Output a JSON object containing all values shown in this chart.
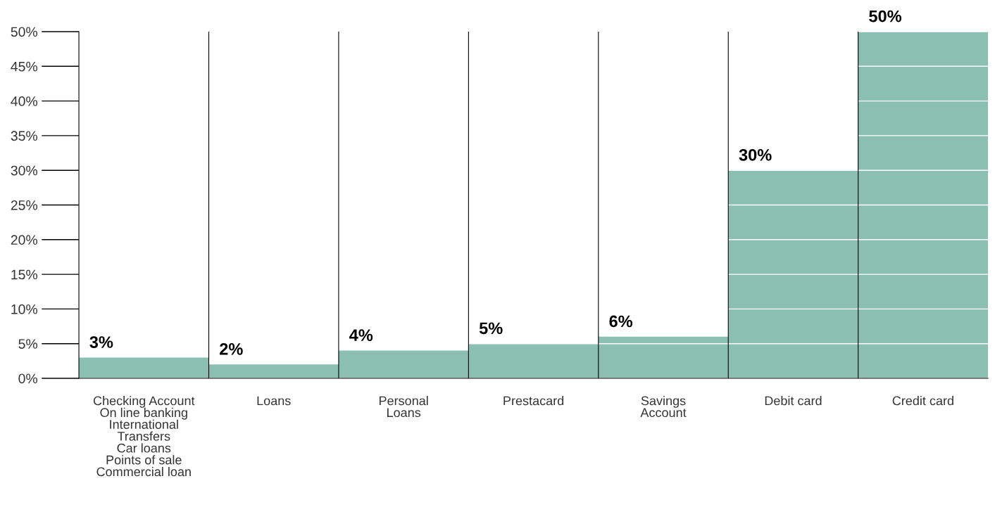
{
  "chart_data": {
    "type": "bar",
    "categories": [
      "Checking Account\nOn line banking\nInternational\nTransfers\nCar loans\nPoints of sale\nCommercial loan",
      "Loans",
      "Personal\nLoans",
      "Prestacard",
      "Savings\nAccount",
      "Debit card",
      "Credit card"
    ],
    "values": [
      3,
      2,
      4,
      5,
      6,
      30,
      50
    ],
    "color": "#8abfb1",
    "ylim": [
      0,
      50
    ],
    "yticks": [
      {
        "value": 0,
        "label": "0%"
      },
      {
        "value": 5,
        "label": "5%"
      },
      {
        "value": 10,
        "label": "10%"
      },
      {
        "value": 15,
        "label": "15%"
      },
      {
        "value": 20,
        "label": "20%"
      },
      {
        "value": 25,
        "label": "25%"
      },
      {
        "value": 30,
        "label": "30%"
      },
      {
        "value": 35,
        "label": "35%"
      },
      {
        "value": 40,
        "label": "40%"
      },
      {
        "value": 45,
        "label": "45%"
      },
      {
        "value": 50,
        "label": "50%"
      }
    ],
    "value_labels": [
      "3%",
      "2%",
      "4%",
      "5%",
      "6%",
      "30%",
      "50%"
    ],
    "grid": true
  }
}
